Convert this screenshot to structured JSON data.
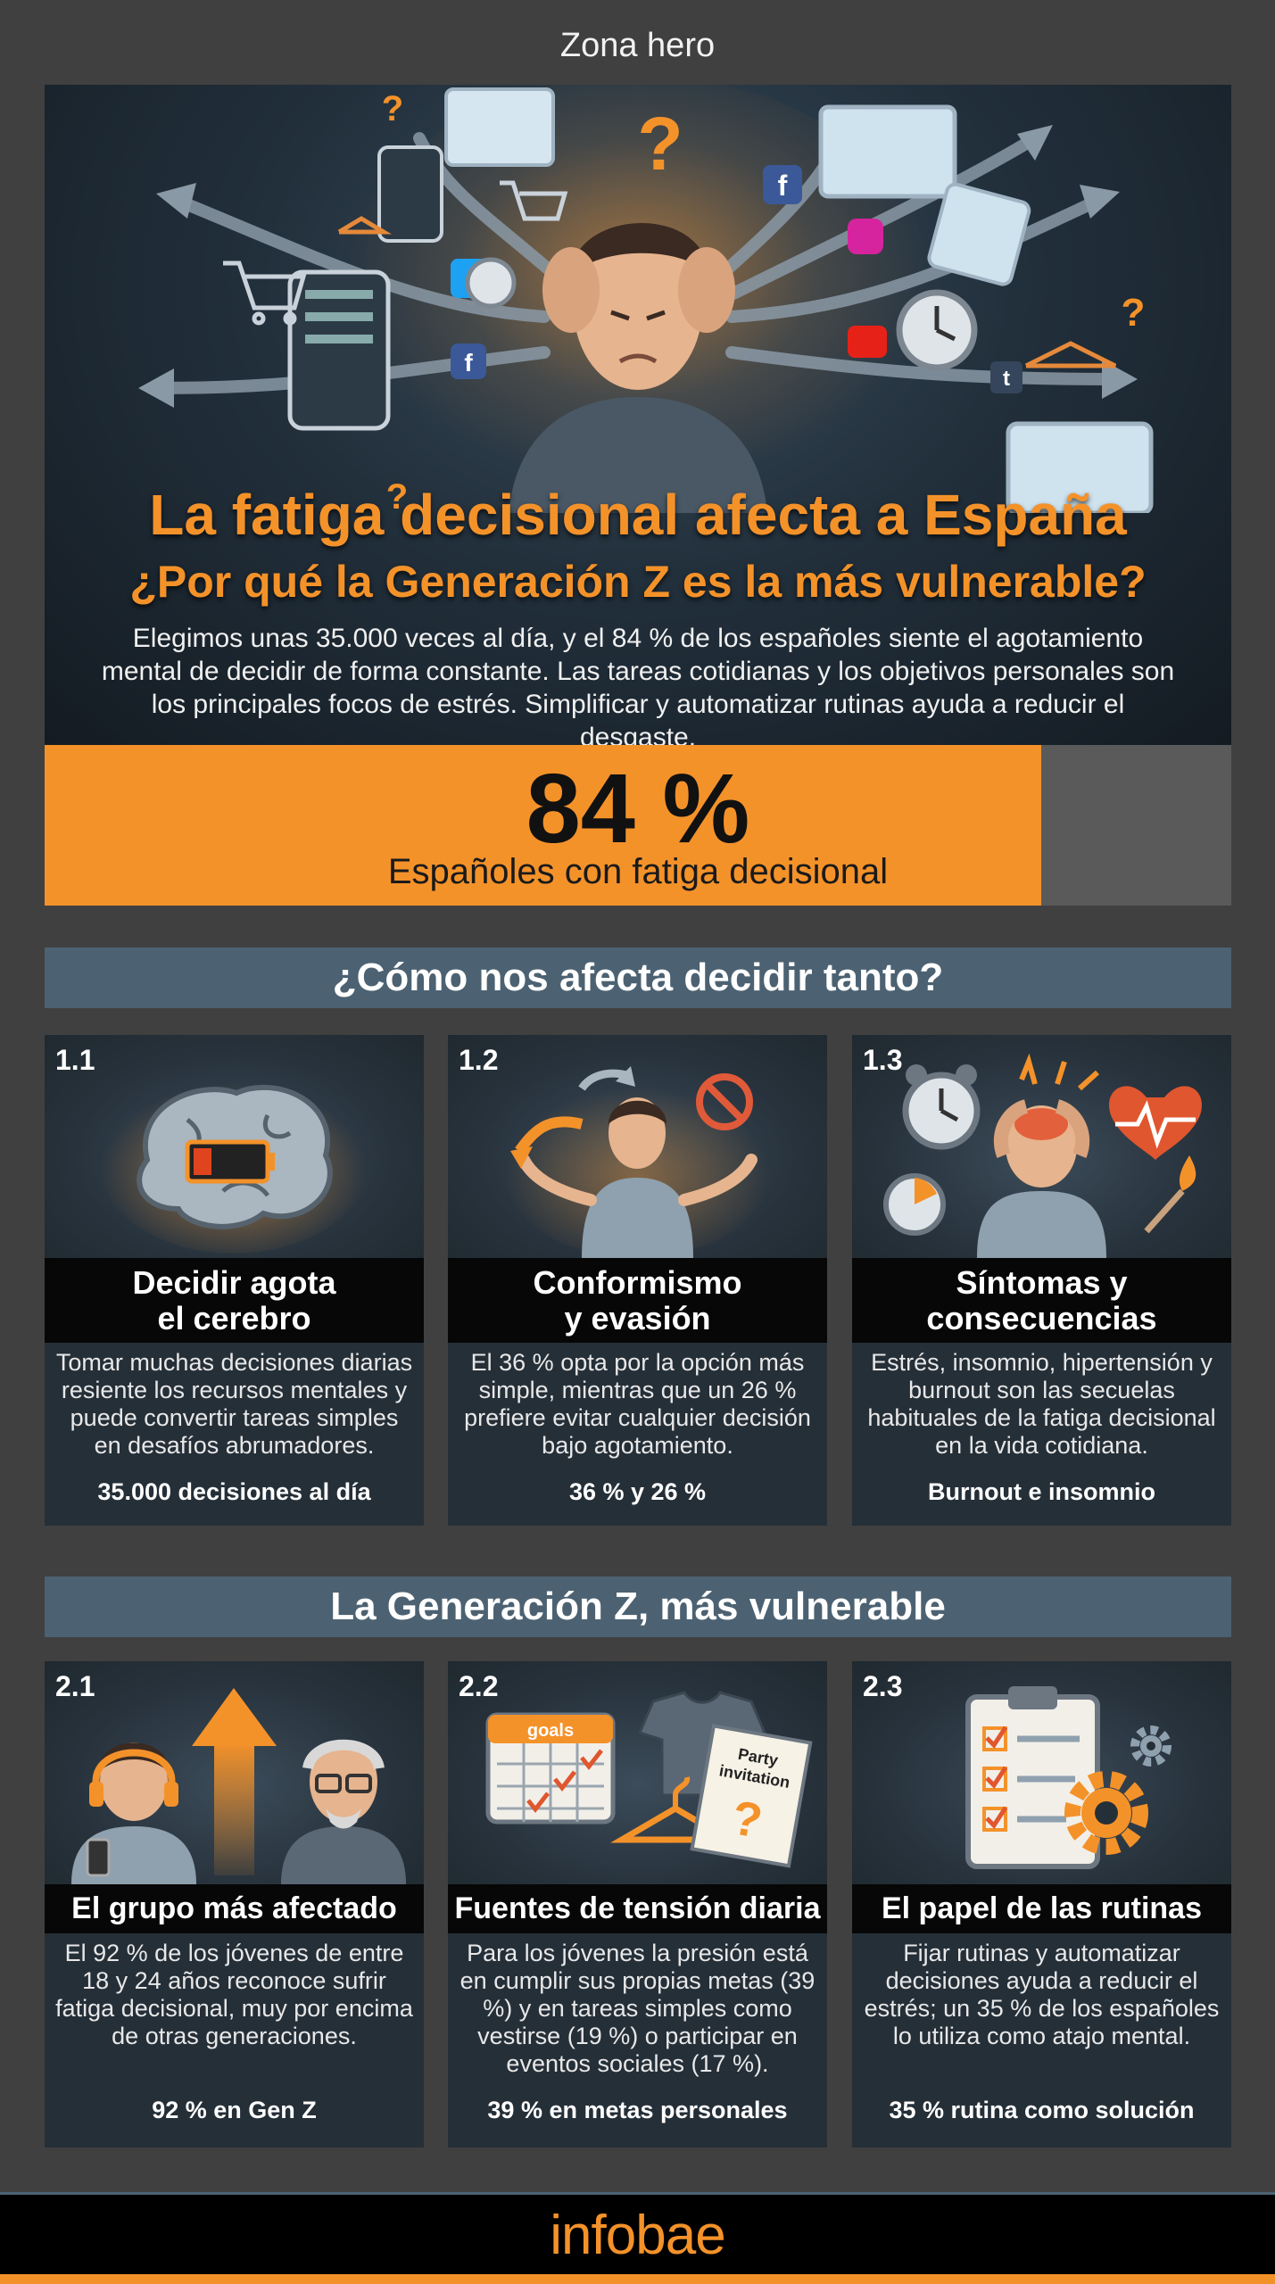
{
  "zone_label": "Zona hero",
  "hero": {
    "title": "La fatiga decisional afecta a España",
    "subtitle": "¿Por qué la Generación Z es la más vulnerable?",
    "body": "Elegimos unas 35.000 veces al día, y el 84 % de los españoles siente el agotamiento mental de decidir de forma constante. Las tareas cotidianas y los objetivos personales son los principales focos de estrés. Simplificar y automatizar rutinas ayuda a reducir el desgaste."
  },
  "stat": {
    "value": "84 %",
    "label": "Españoles con fatiga decisional",
    "fill_fraction": 0.84
  },
  "section1": {
    "title": "¿Cómo nos afecta decidir tanto?",
    "cards": [
      {
        "num": "1.1",
        "title_line1": "Decidir agota",
        "title_line2": "el cerebro",
        "desc": "Tomar muchas decisiones diarias resiente los recursos mentales y puede convertir tareas simples en desafíos abrumadores.",
        "stat": "35.000 decisiones al día",
        "icon": "brain-battery-icon"
      },
      {
        "num": "1.2",
        "title_line1": "Conformismo",
        "title_line2": "y evasión",
        "desc": "El 36 % opta por la opción más simple, mientras que un 26 % prefiere evitar cualquier decisión bajo agotamiento.",
        "stat": "36 % y 26 %",
        "icon": "shrugging-person-icon"
      },
      {
        "num": "1.3",
        "title_line1": "Síntomas y",
        "title_line2": "consecuencias",
        "desc": "Estrés, insomnio, hipertensión y burnout son las secuelas habituales de la fatiga decisional en la vida cotidiana.",
        "stat": "Burnout e insomnio",
        "icon": "stressed-person-icon"
      }
    ]
  },
  "section2": {
    "title": "La Generación Z, más vulnerable",
    "cards": [
      {
        "num": "2.1",
        "title": "El grupo más afectado",
        "desc": "El 92 % de los jóvenes de entre 18 y 24 años reconoce sufrir fatiga decisional, muy por encima de otras generaciones.",
        "stat": "92 % en Gen Z",
        "icon": "generations-icon"
      },
      {
        "num": "2.2",
        "title": "Fuentes de tensión diaria",
        "desc": "Para los jóvenes la presión está en cumplir sus propias metas (39 %) y en tareas simples como vestirse (19 %) o participar en eventos sociales (17 %).",
        "stat": "39 % en metas personales",
        "icon": "daily-tasks-icon",
        "calendar_label": "goals",
        "invitation_line1": "Party",
        "invitation_line2": "invitation"
      },
      {
        "num": "2.3",
        "title": "El papel de las rutinas",
        "desc": "Fijar rutinas y automatizar decisiones ayuda a reducir el estrés; un 35 % de los españoles lo utiliza como atajo mental.",
        "stat": "35 % rutina como solución",
        "icon": "checklist-gear-icon"
      }
    ]
  },
  "footer": {
    "logo": "infobae"
  },
  "colors": {
    "accent": "#f4922a",
    "section": "#4c6272",
    "card": "#252f38",
    "background": "#404040"
  }
}
